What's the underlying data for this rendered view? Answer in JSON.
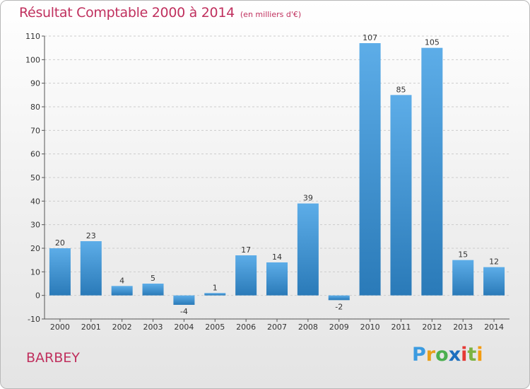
{
  "header": {
    "title": "Résultat Comptable 2000 à 2014",
    "subtitle": "(en milliers d'€)"
  },
  "footer": {
    "commune": "BARBEY",
    "brand": {
      "letters": [
        "P",
        "r",
        "o",
        "x",
        "i",
        "t",
        "i"
      ],
      "colors": [
        "#3b9be0",
        "#e8a01c",
        "#4caf50",
        "#1d6fbf",
        "#e53935",
        "#7cb342",
        "#f39c12"
      ]
    }
  },
  "colors": {
    "bar_top": "#5dade8",
    "bar_bottom": "#2a7ab8",
    "axis": "#555555",
    "grid": "#cccccc",
    "accent": "#c0305e"
  },
  "chart_data": {
    "type": "bar",
    "categories": [
      "2000",
      "2001",
      "2002",
      "2003",
      "2004",
      "2005",
      "2006",
      "2007",
      "2008",
      "2009",
      "2010",
      "2011",
      "2012",
      "2013",
      "2014"
    ],
    "values": [
      20,
      23,
      4,
      5,
      -4,
      1,
      17,
      14,
      39,
      -2,
      107,
      85,
      105,
      15,
      12
    ],
    "ylim": [
      -10,
      110
    ],
    "yticks": [
      -10,
      0,
      10,
      20,
      30,
      40,
      50,
      60,
      70,
      80,
      90,
      100,
      110
    ],
    "grid": "horizontal dashed",
    "data_labels": true,
    "xlabel": "",
    "ylabel": ""
  }
}
